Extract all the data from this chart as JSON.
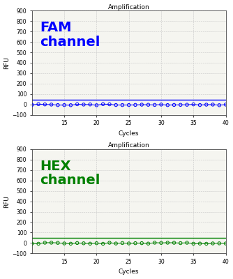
{
  "title": "Amplification",
  "xlabel": "Cycles",
  "ylabel": "RFU",
  "xlim": [
    10,
    40
  ],
  "ylim": [
    -100,
    900
  ],
  "yticks": [
    -100,
    0,
    100,
    200,
    300,
    400,
    500,
    600,
    700,
    800,
    900
  ],
  "xticks": [
    15,
    20,
    25,
    30,
    35,
    40
  ],
  "cycles_start": 10,
  "cycles_end": 40,
  "fam_color": "#0000FF",
  "hex_color": "#008000",
  "fam_label": "FAM\nchannel",
  "hex_label": "HEX\nchannel",
  "threshold_y": 46,
  "bg_color": "#f5f5f0",
  "grid_color": "#c8c8c8",
  "fig_bg": "#ffffff"
}
